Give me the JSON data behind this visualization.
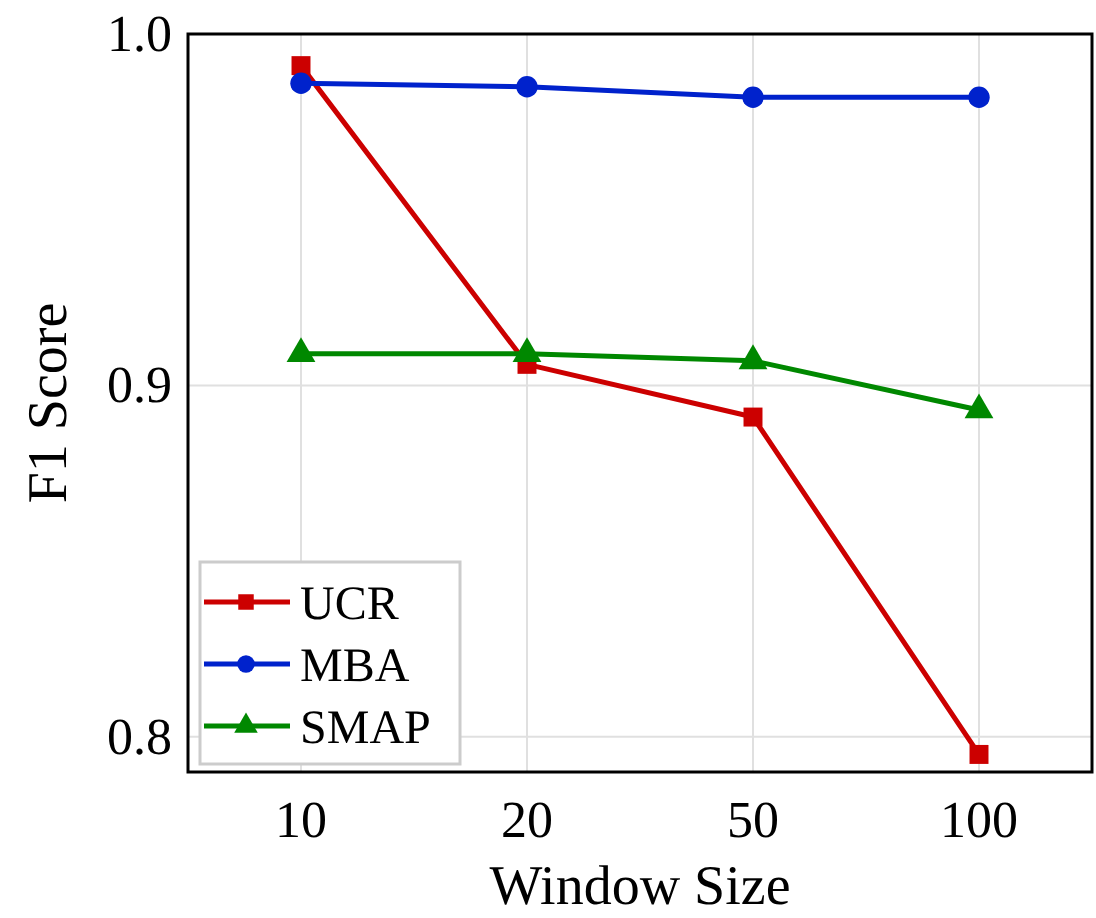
{
  "chart_data": {
    "type": "line",
    "xlabel": "Window Size",
    "ylabel": "F1 Score",
    "categories": [
      "10",
      "20",
      "50",
      "100"
    ],
    "ylim": [
      0.79,
      1.0
    ],
    "yticks": [
      {
        "value": 0.8,
        "label": "0.8"
      },
      {
        "value": 0.9,
        "label": "0.9"
      },
      {
        "value": 1.0,
        "label": "1.0"
      }
    ],
    "grid": true,
    "legend": "bottom left",
    "line_style": "solid",
    "series": [
      {
        "name": "UCR",
        "color": "#cc0000",
        "marker": "square",
        "values": [
          0.991,
          0.906,
          0.891,
          0.795
        ]
      },
      {
        "name": "MBA",
        "color": "#0022cc",
        "marker": "circle",
        "values": [
          0.986,
          0.985,
          0.982,
          0.982
        ]
      },
      {
        "name": "SMAP",
        "color": "#008800",
        "marker": "triangle",
        "values": [
          0.909,
          0.909,
          0.907,
          0.893
        ]
      }
    ]
  }
}
